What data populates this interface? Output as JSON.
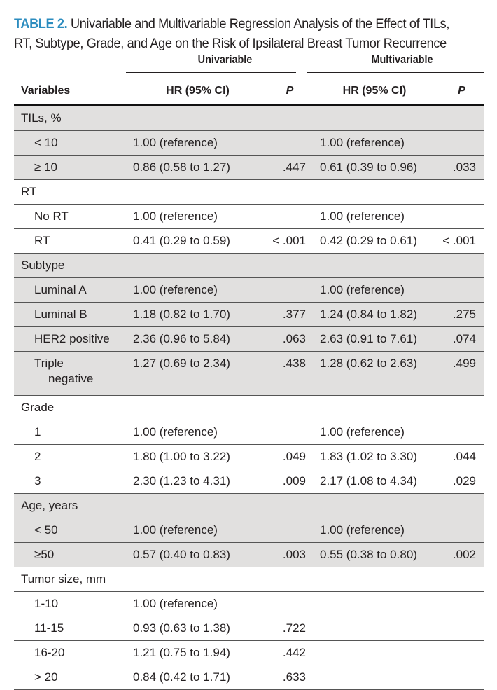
{
  "title": {
    "label": "TABLE 2.",
    "text": "Univariable and Multivariable Regression Analysis of the Effect of TILs, RT, Subtype, Grade, and Age on the Risk of Ipsilateral Breast Tumor Recurrence",
    "line1": "Univariable and Multivariable Regression Analysis of the Effect of TILs,",
    "line2": "RT, Subtype, Grade, and Age on the Risk of Ipsilateral Breast Tumor Recurrence"
  },
  "groups": {
    "uni": "Univariable",
    "multi": "Multivariable"
  },
  "headers": {
    "variables": "Variables",
    "hr1": "HR (95% CI)",
    "p1": "P",
    "hr2": "HR (95% CI)",
    "p2": "P"
  },
  "shade_color": "#e1e0df",
  "accent_color": "#2b8cbf",
  "rows": [
    {
      "label": "TILs, %",
      "type": "group",
      "shaded": true
    },
    {
      "label": "< 10",
      "hr1": "1.00 (reference)",
      "p1": "",
      "hr2": "1.00 (reference)",
      "p2": "",
      "shaded": true
    },
    {
      "label": "≥ 10",
      "hr1": "0.86 (0.58 to 1.27)",
      "p1": ".447",
      "hr2": "0.61 (0.39 to 0.96)",
      "p2": ".033",
      "shaded": true
    },
    {
      "label": "RT",
      "type": "group",
      "shaded": false
    },
    {
      "label": "No RT",
      "hr1": "1.00 (reference)",
      "p1": "",
      "hr2": "1.00 (reference)",
      "p2": "",
      "shaded": false
    },
    {
      "label": "RT",
      "hr1": "0.41 (0.29 to 0.59)",
      "p1": "< .001",
      "hr2": "0.42 (0.29 to 0.61)",
      "p2": "< .001",
      "shaded": false
    },
    {
      "label": "Subtype",
      "type": "group",
      "shaded": true
    },
    {
      "label": "Luminal A",
      "hr1": "1.00 (reference)",
      "p1": "",
      "hr2": "1.00 (reference)",
      "p2": "",
      "shaded": true
    },
    {
      "label": "Luminal B",
      "hr1": "1.18 (0.82 to 1.70)",
      "p1": ".377",
      "hr2": "1.24 (0.84 to 1.82)",
      "p2": ".275",
      "shaded": true
    },
    {
      "label": "HER2 positive",
      "hr1": "2.36 (0.96 to 5.84)",
      "p1": ".063",
      "hr2": "2.63 (0.91 to 7.61)",
      "p2": ".074",
      "shaded": true
    },
    {
      "label": "Triple",
      "label2": "negative",
      "hr1": "1.27 (0.69 to 2.34)",
      "p1": ".438",
      "hr2": "1.28 (0.62 to 2.63)",
      "p2": ".499",
      "shaded": true
    },
    {
      "label": "Grade",
      "type": "group",
      "shaded": false
    },
    {
      "label": "1",
      "hr1": "1.00 (reference)",
      "p1": "",
      "hr2": "1.00 (reference)",
      "p2": "",
      "shaded": false
    },
    {
      "label": "2",
      "hr1": "1.80 (1.00 to 3.22)",
      "p1": ".049",
      "hr2": "1.83 (1.02 to 3.30)",
      "p2": ".044",
      "shaded": false
    },
    {
      "label": "3",
      "hr1": "2.30 (1.23 to 4.31)",
      "p1": ".009",
      "hr2": "2.17 (1.08 to 4.34)",
      "p2": ".029",
      "shaded": false
    },
    {
      "label": "Age, years",
      "type": "group",
      "shaded": true
    },
    {
      "label": "< 50",
      "hr1": "1.00 (reference)",
      "p1": "",
      "hr2": "1.00 (reference)",
      "p2": "",
      "shaded": true
    },
    {
      "label": "≥50",
      "hr1": "0.57 (0.40 to 0.83)",
      "p1": ".003",
      "hr2": "0.55 (0.38 to 0.80)",
      "p2": ".002",
      "shaded": true
    },
    {
      "label": "Tumor size, mm",
      "type": "group",
      "shaded": false
    },
    {
      "label": "1-10",
      "hr1": "1.00 (reference)",
      "p1": "",
      "hr2": "",
      "p2": "",
      "shaded": false
    },
    {
      "label": "11-15",
      "hr1": "0.93 (0.63 to 1.38)",
      "p1": ".722",
      "hr2": "",
      "p2": "",
      "shaded": false
    },
    {
      "label": "16-20",
      "hr1": "1.21 (0.75 to 1.94)",
      "p1": ".442",
      "hr2": "",
      "p2": "",
      "shaded": false
    },
    {
      "label": "> 20",
      "hr1": "0.84 (0.42 to 1.71)",
      "p1": ".633",
      "hr2": "",
      "p2": "",
      "shaded": false
    }
  ]
}
